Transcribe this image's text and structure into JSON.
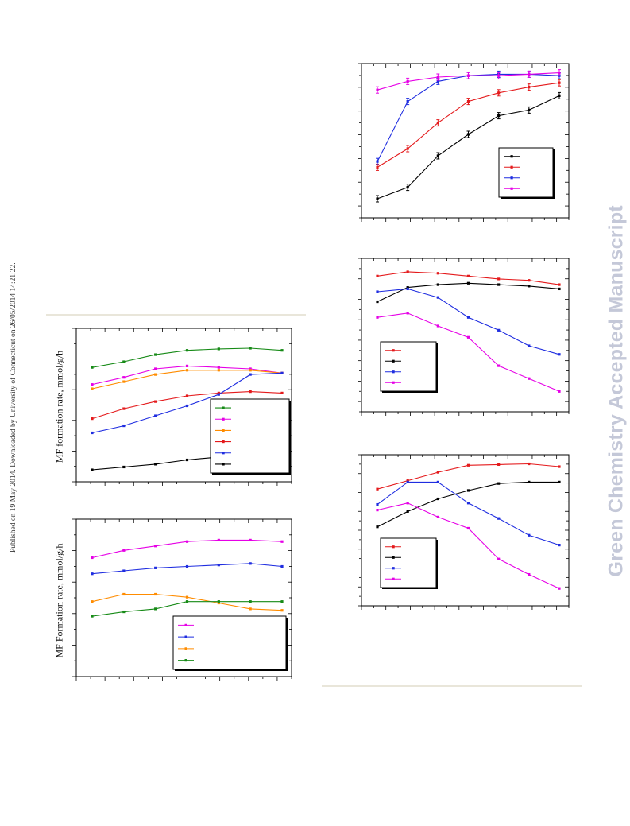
{
  "side_note": "Published on 19 May 2014. Downloaded by University of Connecticut on 26/05/2014 14:21:22.",
  "watermark": "Green Chemistry Accepted Manuscript",
  "left_top_ylabel": "MF formation rate, mmol/g/h",
  "left_bottom_ylabel": "MF Formation rate, mmol/g/h",
  "colors": {
    "black": "#000000",
    "red": "#e41a1c",
    "blue": "#1f2de0",
    "magenta": "#e600e6",
    "green": "#168a16",
    "orange": "#ff8c00"
  },
  "chart_data": [
    {
      "id": "right-top",
      "type": "line",
      "error_bars": true,
      "x": [
        1,
        2,
        3,
        4,
        5,
        6,
        7
      ],
      "ylim": [
        0,
        100
      ],
      "series": [
        {
          "color": "black",
          "values": [
            10,
            18,
            40,
            55,
            68,
            72,
            82
          ]
        },
        {
          "color": "red",
          "values": [
            32,
            45,
            63,
            78,
            84,
            88,
            91
          ]
        },
        {
          "color": "blue",
          "values": [
            36,
            78,
            92,
            96,
            97,
            97,
            96
          ]
        },
        {
          "color": "magenta",
          "values": [
            86,
            92,
            95,
            96,
            96,
            97,
            98
          ]
        }
      ],
      "legend": "right"
    },
    {
      "id": "right-middle",
      "type": "line",
      "x": [
        1,
        2,
        3,
        4,
        5,
        6,
        7
      ],
      "ylim": [
        0,
        100
      ],
      "series": [
        {
          "color": "red",
          "values": [
            92,
            95,
            94,
            92,
            90,
            89,
            86
          ]
        },
        {
          "color": "black",
          "values": [
            74,
            84,
            86,
            87,
            86,
            85,
            83
          ]
        },
        {
          "color": "blue",
          "values": [
            81,
            83,
            77,
            63,
            54,
            43,
            37
          ]
        },
        {
          "color": "magenta",
          "values": [
            63,
            66,
            57,
            49,
            29,
            20,
            11
          ]
        }
      ],
      "legend": "left"
    },
    {
      "id": "right-bottom",
      "type": "line",
      "x": [
        1,
        2,
        3,
        4,
        5,
        6,
        7
      ],
      "ylim": [
        0,
        100
      ],
      "series": [
        {
          "color": "red",
          "values": [
            80,
            86,
            92,
            97,
            97.5,
            98,
            96
          ]
        },
        {
          "color": "black",
          "values": [
            53,
            64,
            73,
            79,
            84,
            85,
            85
          ]
        },
        {
          "color": "blue",
          "values": [
            69,
            85,
            85,
            70,
            59,
            47,
            40
          ]
        },
        {
          "color": "magenta",
          "values": [
            65,
            70,
            60,
            52,
            30,
            19,
            9
          ]
        }
      ],
      "legend": "left"
    },
    {
      "id": "left-top",
      "type": "line",
      "x": [
        1,
        2,
        3,
        4,
        5,
        6,
        7
      ],
      "ylim": [
        0,
        100
      ],
      "series": [
        {
          "color": "green",
          "values": [
            77,
            81,
            86,
            89,
            90,
            90.5,
            89
          ]
        },
        {
          "color": "magenta",
          "values": [
            65,
            70,
            76,
            78,
            77,
            76,
            73
          ]
        },
        {
          "color": "orange",
          "values": [
            62,
            67,
            72,
            75,
            75,
            75,
            73
          ]
        },
        {
          "color": "red",
          "values": [
            41,
            48,
            53,
            57,
            59,
            60,
            59
          ]
        },
        {
          "color": "blue",
          "values": [
            31,
            36,
            43,
            50,
            58,
            72,
            73
          ]
        },
        {
          "color": "black",
          "values": [
            5,
            7,
            9,
            12,
            14,
            16,
            18
          ]
        }
      ],
      "legend": "right"
    },
    {
      "id": "left-bottom",
      "type": "line",
      "x": [
        1,
        2,
        3,
        4,
        5,
        6,
        7
      ],
      "ylim": [
        0,
        100
      ],
      "series": [
        {
          "color": "magenta",
          "values": [
            78,
            83,
            86,
            89,
            90,
            90,
            89
          ]
        },
        {
          "color": "blue",
          "values": [
            67,
            69,
            71,
            72,
            73,
            74,
            72
          ]
        },
        {
          "color": "orange",
          "values": [
            48,
            53,
            53,
            51,
            47,
            43,
            42
          ]
        },
        {
          "color": "green",
          "values": [
            38,
            41,
            43,
            48,
            48,
            48,
            48
          ]
        }
      ],
      "legend": "right"
    }
  ]
}
